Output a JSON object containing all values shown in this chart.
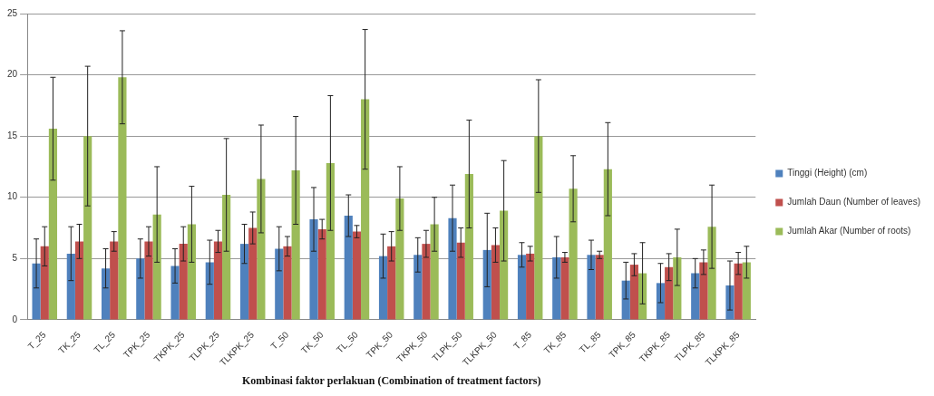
{
  "chart_data": {
    "type": "bar",
    "xlabel": "Kombinasi faktor perlakuan (Combination of treatment factors)",
    "categories": [
      "T_25",
      "TK_25",
      "TL_25",
      "TPK_25",
      "TKPK_25",
      "TLPK_25",
      "TLKPK_25",
      "T_50",
      "TK_50",
      "TL_50",
      "TPK_50",
      "TKPK_50",
      "TLPK_50",
      "TLKPK_50",
      "T_85",
      "TK_85",
      "TL_85",
      "TPK_85",
      "TKPK_85",
      "TLPK_85",
      "TLKPK_85"
    ],
    "series": [
      {
        "name": "Tinggi (Height) (cm)",
        "color": "#4f81bd",
        "values": [
          4.6,
          5.4,
          4.2,
          5.0,
          4.4,
          4.7,
          6.2,
          5.8,
          8.2,
          8.5,
          5.2,
          5.3,
          8.3,
          5.7,
          5.3,
          5.1,
          5.3,
          3.2,
          3.0,
          3.8,
          2.8
        ],
        "errors": [
          2.0,
          2.2,
          1.6,
          1.6,
          1.4,
          1.8,
          1.6,
          1.8,
          2.6,
          1.7,
          1.8,
          1.4,
          2.7,
          3.0,
          1.0,
          1.7,
          1.2,
          1.5,
          1.6,
          1.2,
          2.0
        ]
      },
      {
        "name": "Jumlah Daun (Number of leaves)",
        "color": "#c0504d",
        "values": [
          6.0,
          6.4,
          6.4,
          6.4,
          6.2,
          6.4,
          7.5,
          6.0,
          7.4,
          7.2,
          6.0,
          6.2,
          6.3,
          6.1,
          5.4,
          5.1,
          5.3,
          4.5,
          4.3,
          4.7,
          4.6
        ],
        "errors": [
          1.6,
          1.4,
          0.8,
          1.2,
          1.4,
          0.9,
          1.3,
          0.8,
          0.8,
          0.5,
          1.2,
          1.1,
          1.2,
          1.4,
          0.6,
          0.4,
          0.3,
          0.9,
          1.1,
          1.0,
          0.9
        ]
      },
      {
        "name": "Jumlah Akar (Number of roots)",
        "color": "#9bbb59",
        "values": [
          15.6,
          15.0,
          19.8,
          8.6,
          7.8,
          10.2,
          11.5,
          12.2,
          12.8,
          18.0,
          9.9,
          7.8,
          11.9,
          8.9,
          15.0,
          10.7,
          12.3,
          3.8,
          5.1,
          7.6,
          4.7
        ],
        "errors": [
          4.2,
          5.7,
          3.8,
          3.9,
          3.1,
          4.6,
          4.4,
          4.4,
          5.5,
          5.7,
          2.6,
          2.2,
          4.4,
          4.1,
          4.6,
          2.7,
          3.8,
          2.5,
          2.3,
          3.4,
          1.3
        ]
      }
    ],
    "ylim": [
      0,
      25
    ],
    "yticks": [
      0,
      5,
      10,
      15,
      20,
      25
    ],
    "grid": "y",
    "legend": "right"
  }
}
